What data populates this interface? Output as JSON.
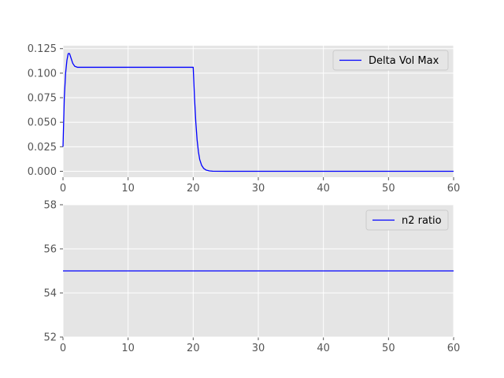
{
  "chart_data": [
    {
      "type": "line",
      "title": "",
      "xlabel": "",
      "ylabel": "",
      "xlim": [
        0,
        60
      ],
      "ylim": [
        -0.006,
        0.128
      ],
      "grid": true,
      "legend_position": "top-right",
      "xticks": [
        "0",
        "10",
        "20",
        "30",
        "40",
        "50",
        "60"
      ],
      "yticks": [
        "0.000",
        "0.025",
        "0.050",
        "0.075",
        "0.100",
        "0.125"
      ],
      "series": [
        {
          "name": "Delta Vol Max",
          "color": "#0000ff",
          "x": [
            0,
            0.2,
            0.4,
            0.6,
            0.8,
            1.0,
            1.2,
            1.5,
            1.8,
            2.2,
            3,
            5,
            10,
            15,
            20,
            20.2,
            20.4,
            20.6,
            20.8,
            21.0,
            21.3,
            21.6,
            22,
            22.5,
            23,
            25,
            30,
            40,
            50,
            60
          ],
          "y": [
            0.025,
            0.075,
            0.1,
            0.113,
            0.12,
            0.12,
            0.116,
            0.11,
            0.107,
            0.106,
            0.106,
            0.106,
            0.106,
            0.106,
            0.106,
            0.075,
            0.05,
            0.032,
            0.02,
            0.012,
            0.006,
            0.003,
            0.0012,
            0.0004,
            0.0001,
            0.0,
            0.0,
            0.0,
            0.0,
            0.0
          ]
        }
      ]
    },
    {
      "type": "line",
      "title": "",
      "xlabel": "",
      "ylabel": "",
      "xlim": [
        0,
        60
      ],
      "ylim": [
        52,
        58
      ],
      "grid": true,
      "legend_position": "top-right",
      "xticks": [
        "0",
        "10",
        "20",
        "30",
        "40",
        "50",
        "60"
      ],
      "yticks": [
        "52",
        "54",
        "56",
        "58"
      ],
      "series": [
        {
          "name": "n2 ratio",
          "color": "#0000ff",
          "x": [
            0,
            60
          ],
          "y": [
            55,
            55
          ]
        }
      ]
    }
  ]
}
